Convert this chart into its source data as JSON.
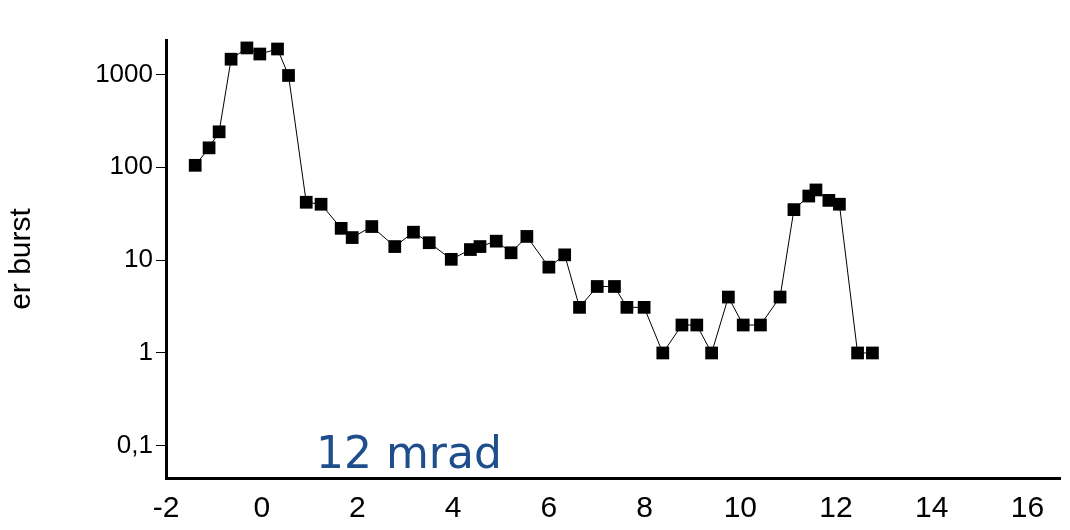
{
  "chart_data": {
    "type": "line",
    "ylabel": "er burst",
    "annotations": [
      "12 mrad"
    ],
    "x": [
      -1.39,
      -1.1,
      -0.89,
      -0.64,
      -0.31,
      -0.04,
      0.33,
      0.56,
      0.93,
      1.24,
      1.66,
      1.89,
      2.3,
      2.78,
      3.17,
      3.5,
      3.96,
      4.36,
      4.56,
      4.9,
      5.21,
      5.54,
      6.0,
      6.33,
      6.64,
      7.01,
      7.37,
      7.63,
      7.99,
      8.38,
      8.78,
      9.09,
      9.4,
      9.75,
      10.06,
      10.42,
      10.83,
      11.12,
      11.43,
      11.58,
      11.85,
      12.07,
      12.45,
      12.76
    ],
    "series": [
      {
        "color": "#000000",
        "values": [
          105,
          162,
          241,
          1460,
          1930,
          1660,
          1880,
          975,
          42,
          40,
          22,
          17.5,
          23,
          14,
          20,
          15.4,
          10.2,
          13,
          14,
          16,
          12,
          18,
          8.4,
          11.4,
          3.1,
          5.2,
          5.2,
          3.1,
          3.1,
          1,
          2,
          2,
          1,
          4,
          2,
          2,
          4,
          35,
          49,
          57,
          44,
          40,
          1,
          1
        ]
      }
    ],
    "marker": "square",
    "line_style": "solid",
    "log": "y",
    "grid": false,
    "legend": false,
    "xlim": [
      -2,
      16.7
    ],
    "xticks": [
      -2,
      0,
      2,
      4,
      6,
      8,
      10,
      12,
      14,
      16
    ],
    "ylim": [
      0.045,
      2350
    ],
    "yticks": [
      {
        "value": 0.1,
        "label": "0,1"
      },
      1,
      10,
      100,
      1000
    ]
  }
}
